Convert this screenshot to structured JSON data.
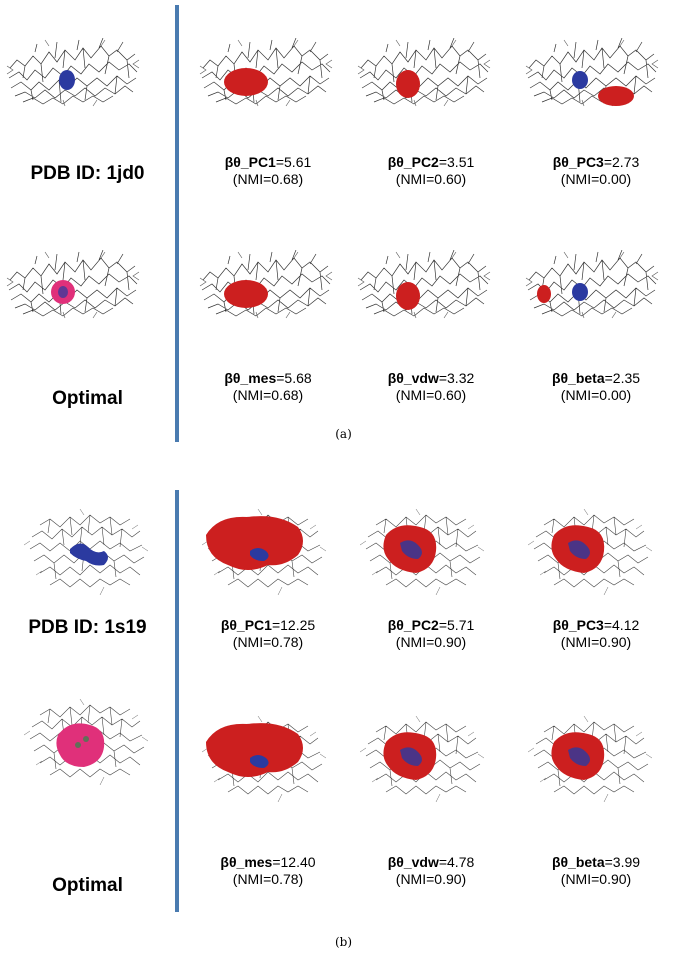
{
  "panel_a": {
    "caption": "(a)",
    "pdb_label": "PDB ID: 1jd0",
    "optimal_label": "Optimal",
    "cells": [
      {
        "name": "βθ_PC1",
        "value": "=5.61",
        "nmi": "(NMI=0.68)",
        "blob": "red-left"
      },
      {
        "name": "βθ_PC2",
        "value": "=3.51",
        "nmi": "(NMI=0.60)",
        "blob": "red-center"
      },
      {
        "name": "βθ_PC3",
        "value": "=2.73",
        "nmi": "(NMI=0.00)",
        "blob": "red-right"
      },
      {
        "name": "βθ_mes",
        "value": "=5.68",
        "nmi": "(NMI=0.68)",
        "blob": "red-left"
      },
      {
        "name": "βθ_vdw",
        "value": "=3.32",
        "nmi": "(NMI=0.60)",
        "blob": "red-center"
      },
      {
        "name": "βθ_beta",
        "value": "=2.35",
        "nmi": "(NMI=0.00)",
        "blob": "red-far-left"
      }
    ]
  },
  "panel_b": {
    "caption": "(b)",
    "pdb_label": "PDB ID: 1s19",
    "optimal_label": "Optimal",
    "cells": [
      {
        "name": "βθ_PC1",
        "value": "=12.25",
        "nmi": "(NMI=0.78)",
        "blob": "red-large"
      },
      {
        "name": "βθ_PC2",
        "value": "=5.71",
        "nmi": "(NMI=0.90)",
        "blob": "red-medium"
      },
      {
        "name": "βθ_PC3",
        "value": "=4.12",
        "nmi": "(NMI=0.90)",
        "blob": "red-medium"
      },
      {
        "name": "βθ_mes",
        "value": "=12.40",
        "nmi": "(NMI=0.78)",
        "blob": "red-large"
      },
      {
        "name": "βθ_vdw",
        "value": "=4.78",
        "nmi": "(NMI=0.90)",
        "blob": "red-medium"
      },
      {
        "name": "βθ_beta",
        "value": "=3.99",
        "nmi": "(NMI=0.90)",
        "blob": "red-medium"
      }
    ]
  },
  "colors": {
    "divider": "#4a7bb0",
    "predicted_pocket": "#cc1f1f",
    "ligand": "#2b3aa0",
    "optimal_pocket": "#e0307a",
    "backbone": "#333333"
  }
}
